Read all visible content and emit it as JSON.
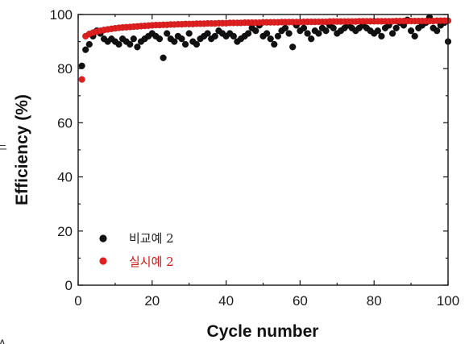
{
  "chart_data": {
    "type": "scatter",
    "xlabel": "Cycle number",
    "ylabel": "Efficiency (%)",
    "xlim": [
      0,
      100
    ],
    "ylim": [
      0,
      100
    ],
    "x_ticks": [
      "0",
      "20",
      "40",
      "60",
      "80",
      "100"
    ],
    "y_ticks": [
      "0",
      "20",
      "40",
      "60",
      "80",
      "100"
    ],
    "legend_position": "lower-left",
    "grid": false,
    "series": [
      {
        "name": "비교예 2",
        "color": "#111111",
        "x": [
          1,
          2,
          3,
          4,
          5,
          6,
          7,
          8,
          9,
          10,
          11,
          12,
          13,
          14,
          15,
          16,
          17,
          18,
          19,
          20,
          21,
          22,
          23,
          24,
          25,
          26,
          27,
          28,
          29,
          30,
          31,
          32,
          33,
          34,
          35,
          36,
          37,
          38,
          39,
          40,
          41,
          42,
          43,
          44,
          45,
          46,
          47,
          48,
          49,
          50,
          51,
          52,
          53,
          54,
          55,
          56,
          57,
          58,
          59,
          60,
          61,
          62,
          63,
          64,
          65,
          66,
          67,
          68,
          69,
          70,
          71,
          72,
          73,
          74,
          75,
          76,
          77,
          78,
          79,
          80,
          81,
          82,
          83,
          84,
          85,
          86,
          87,
          88,
          89,
          90,
          91,
          92,
          93,
          94,
          95,
          96,
          97,
          98,
          99,
          100
        ],
        "y": [
          81,
          87,
          89,
          92,
          94,
          93,
          91,
          90,
          91,
          90,
          89,
          91,
          90,
          89,
          91,
          88,
          90,
          91,
          92,
          93,
          92,
          91,
          84,
          93,
          91,
          90,
          92,
          91,
          89,
          93,
          90,
          89,
          91,
          92,
          93,
          91,
          92,
          94,
          93,
          92,
          93,
          92,
          90,
          91,
          92,
          93,
          95,
          94,
          96,
          92,
          93,
          91,
          89,
          92,
          94,
          95,
          93,
          88,
          96,
          94,
          95,
          93,
          91,
          94,
          93,
          95,
          94,
          96,
          95,
          93,
          94,
          95,
          96,
          95,
          94,
          95,
          96,
          95,
          94,
          93,
          94,
          92,
          95,
          96,
          93,
          95,
          97,
          96,
          98,
          94,
          92,
          95,
          96,
          97,
          99,
          95,
          94,
          96,
          97,
          90
        ]
      },
      {
        "name": "실시예 2",
        "color": "#e02020",
        "x": [
          1,
          2,
          3,
          4,
          5,
          6,
          7,
          8,
          9,
          10,
          11,
          12,
          13,
          14,
          15,
          16,
          17,
          18,
          19,
          20,
          21,
          22,
          23,
          24,
          25,
          26,
          27,
          28,
          29,
          30,
          31,
          32,
          33,
          34,
          35,
          36,
          37,
          38,
          39,
          40,
          41,
          42,
          43,
          44,
          45,
          46,
          47,
          48,
          49,
          50,
          51,
          52,
          53,
          54,
          55,
          56,
          57,
          58,
          59,
          60,
          61,
          62,
          63,
          64,
          65,
          66,
          67,
          68,
          69,
          70,
          71,
          72,
          73,
          74,
          75,
          76,
          77,
          78,
          79,
          80,
          81,
          82,
          83,
          84,
          85,
          86,
          87,
          88,
          89,
          90,
          91,
          92,
          93,
          94,
          95,
          96,
          97,
          98,
          99,
          100
        ],
        "y": [
          76,
          92,
          92.8,
          93.3,
          93.7,
          94,
          94.3,
          94.5,
          94.7,
          94.9,
          95.1,
          95.2,
          95.3,
          95.4,
          95.5,
          95.6,
          95.7,
          95.8,
          95.9,
          96,
          96.1,
          96.1,
          96.2,
          96.2,
          96.3,
          96.3,
          96.4,
          96.4,
          96.5,
          96.5,
          96.5,
          96.6,
          96.6,
          96.6,
          96.7,
          96.7,
          96.7,
          96.8,
          96.8,
          96.8,
          96.9,
          96.9,
          96.9,
          96.9,
          97,
          97,
          97,
          97,
          97,
          97.1,
          97.1,
          97.1,
          97.1,
          97.1,
          97.2,
          97.2,
          97.2,
          97.2,
          97.2,
          97.2,
          97.3,
          97.3,
          97.3,
          97.3,
          97.3,
          97.3,
          97.3,
          97.4,
          97.4,
          97.4,
          97.4,
          97.4,
          97.4,
          97.4,
          97.4,
          97.5,
          97.5,
          97.5,
          97.5,
          97.5,
          97.5,
          97.5,
          97.5,
          97.5,
          97.5,
          97.6,
          97.6,
          97.6,
          97.6,
          97.6,
          97.6,
          97.6,
          97.6,
          97.6,
          97.6,
          97.6,
          97.7,
          97.7,
          97.7,
          97.7
        ]
      }
    ]
  },
  "legend": {
    "label_comparative": "비교예 2",
    "label_example": "실시예 2"
  },
  "edge_marks": {
    "left_glyph": "느",
    "bottom_glyph": "A"
  }
}
